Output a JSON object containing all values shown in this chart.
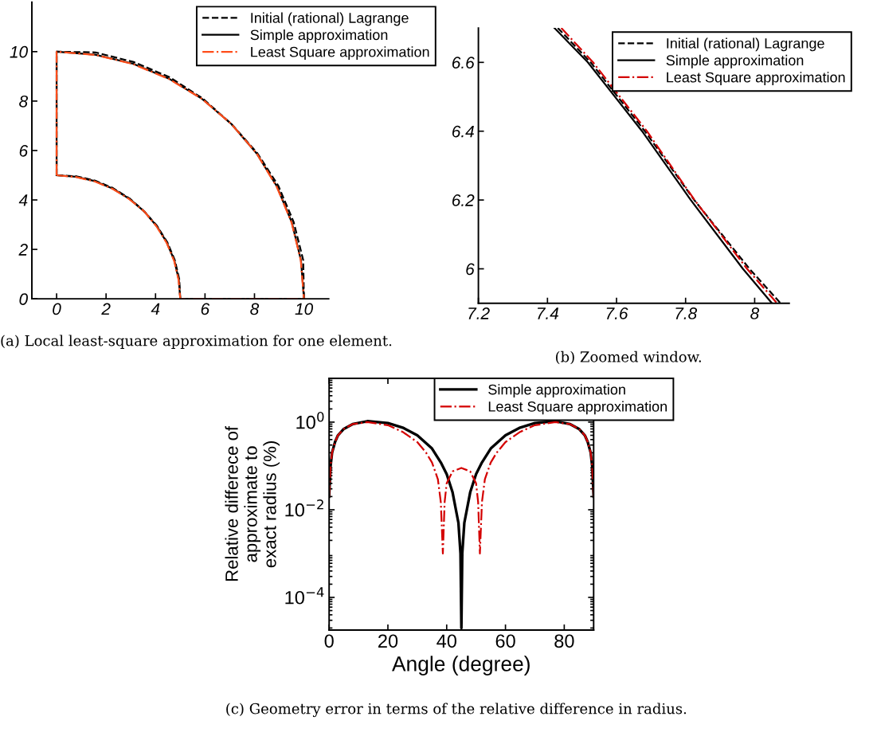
{
  "chart_data": [
    {
      "type": "line",
      "xlim": [
        -1,
        11
      ],
      "ylim": [
        0,
        12
      ],
      "xticks": [
        0,
        2,
        4,
        6,
        8,
        10
      ],
      "yticks": [
        0,
        2,
        4,
        6,
        8,
        10
      ],
      "legend": "top right",
      "annotations": [
        "(a) Local least-square approximation for one element."
      ],
      "series": [
        {
          "name": "Initial (rational) Lagrange",
          "color": "#000000",
          "line_style": "dashed",
          "x": [
            0,
            0,
            1.57,
            3.12,
            4.58,
            5.9,
            7.07,
            8.11,
            8.96,
            9.58,
            9.97,
            10
          ],
          "values": [
            5,
            10,
            9.97,
            9.58,
            8.96,
            8.11,
            7.07,
            5.9,
            4.58,
            3.12,
            1.57,
            0
          ]
        },
        {
          "color": "#000000",
          "line_style": "dashed",
          "x": [
            0,
            0.79,
            1.56,
            2.28,
            2.95,
            3.54,
            4.06,
            4.48,
            4.78,
            4.96,
            5,
            10
          ],
          "values": [
            5,
            4.96,
            4.78,
            4.48,
            4.06,
            3.54,
            2.95,
            2.28,
            1.56,
            0.79,
            0,
            0
          ]
        },
        {
          "name": "Simple approximation",
          "color": "#000000",
          "line_style": "solid",
          "x": [
            0,
            0,
            1.56,
            3.09,
            4.54,
            5.88,
            7.07,
            8.09,
            8.91,
            9.51,
            9.88,
            10
          ],
          "values": [
            5,
            10,
            9.88,
            9.51,
            8.91,
            8.09,
            7.07,
            5.88,
            4.54,
            3.09,
            1.56,
            0
          ]
        },
        {
          "color": "#000000",
          "line_style": "solid",
          "x": [
            0,
            0.78,
            1.55,
            2.27,
            2.94,
            3.54,
            4.05,
            4.46,
            4.76,
            4.94,
            5,
            10
          ],
          "values": [
            5,
            4.94,
            4.76,
            4.46,
            4.05,
            3.54,
            2.94,
            2.27,
            1.55,
            0.78,
            0,
            0
          ]
        },
        {
          "name": "Least Square approximation",
          "color": "#ff4d1a",
          "line_style": "dashdot",
          "x": [
            0,
            0,
            1.56,
            3.08,
            4.53,
            5.88,
            7.07,
            8.09,
            8.9,
            9.5,
            9.87,
            10
          ],
          "values": [
            5,
            10,
            9.87,
            9.5,
            8.9,
            8.09,
            7.07,
            5.88,
            4.53,
            3.08,
            1.56,
            0
          ]
        },
        {
          "color": "#ff4d1a",
          "line_style": "dashdot",
          "x": [
            0,
            0.77,
            1.54,
            2.26,
            2.93,
            3.54,
            4.04,
            4.45,
            4.75,
            4.93,
            5,
            10
          ],
          "values": [
            5,
            4.93,
            4.75,
            4.45,
            4.04,
            3.54,
            2.93,
            2.26,
            1.54,
            0.77,
            0,
            0
          ]
        }
      ]
    },
    {
      "type": "line",
      "xlim": [
        7.2,
        8.1
      ],
      "ylim": [
        5.9,
        6.7
      ],
      "xticks": [
        7.2,
        7.4,
        7.6,
        7.8,
        8
      ],
      "yticks": [
        6,
        6.2,
        6.4,
        6.6
      ],
      "legend": "top right",
      "annotations": [
        "(b) Zoomed window."
      ],
      "series": [
        {
          "name": "Initial (rational) Lagrange",
          "color": "#000000",
          "line_style": "dashed",
          "x": [
            7.43,
            7.525,
            7.682,
            7.825,
            7.985,
            8.075
          ],
          "values": [
            6.7,
            6.6,
            6.4,
            6.2,
            6.0,
            5.9
          ]
        },
        {
          "name": "Simple approximation",
          "color": "#000000",
          "line_style": "solid",
          "x": [
            7.42,
            7.517,
            7.674,
            7.815,
            7.966,
            8.05
          ],
          "values": [
            6.7,
            6.6,
            6.4,
            6.2,
            6.0,
            5.9
          ]
        },
        {
          "name": "Least Square approximation",
          "color": "#d40000",
          "line_style": "dashdot",
          "x": [
            7.44,
            7.532,
            7.688,
            7.826,
            7.978,
            8.065
          ],
          "values": [
            6.7,
            6.6,
            6.4,
            6.2,
            6.0,
            5.9
          ]
        }
      ]
    },
    {
      "type": "line",
      "log": "y",
      "xlim": [
        0,
        90
      ],
      "ylim": [
        1.8e-05,
        10
      ],
      "xticks": [
        0,
        20,
        40,
        60,
        80
      ],
      "yticks": [
        {
          "value": 0.0001,
          "label": "10$^{−4}$"
        },
        {
          "value": 0.01,
          "label": "10$^{−2}$"
        },
        {
          "value": 1,
          "label": "10$^{0}$"
        }
      ],
      "xlabel": "Angle (degree)",
      "ylabel": "Relative differece of\napproximate to\nexact radius (%)",
      "legend": "top",
      "annotations": [
        "(c) Geometry error in terms of the relative difference in radius."
      ],
      "series": [
        {
          "name": "Simple approximation",
          "color": "#000000",
          "line_style": "solid",
          "x": [
            0,
            0.5,
            1,
            2,
            3,
            5,
            8,
            13,
            20,
            25,
            30,
            35,
            38,
            40,
            42,
            44,
            44.7,
            45,
            45.3,
            46,
            48,
            50,
            52,
            55,
            60,
            65,
            70,
            77,
            82,
            85,
            87,
            88,
            89,
            89.5,
            90
          ],
          "values": [
            0.02,
            0.1,
            0.2,
            0.35,
            0.5,
            0.7,
            0.9,
            1.05,
            0.95,
            0.75,
            0.5,
            0.25,
            0.12,
            0.065,
            0.025,
            0.005,
            0.001,
            2e-05,
            0.001,
            0.005,
            0.025,
            0.065,
            0.12,
            0.25,
            0.5,
            0.75,
            0.95,
            1.05,
            0.9,
            0.7,
            0.5,
            0.35,
            0.2,
            0.1,
            0.02
          ]
        },
        {
          "name": "Least Square approximation",
          "color": "#d40000",
          "line_style": "dashdot",
          "x": [
            0,
            0.5,
            1,
            2,
            3,
            5,
            8,
            13,
            20,
            25,
            30,
            33,
            35,
            37,
            38,
            38.7,
            39.3,
            40,
            42,
            45,
            48,
            50,
            50.7,
            51.3,
            52,
            53,
            55,
            57,
            60,
            65,
            70,
            77,
            82,
            85,
            87,
            88,
            89,
            89.5,
            90
          ],
          "values": [
            0.02,
            0.1,
            0.2,
            0.35,
            0.5,
            0.7,
            0.9,
            1.0,
            0.85,
            0.6,
            0.35,
            0.2,
            0.12,
            0.05,
            0.015,
            0.001,
            0.015,
            0.04,
            0.075,
            0.09,
            0.075,
            0.04,
            0.015,
            0.001,
            0.015,
            0.05,
            0.12,
            0.2,
            0.35,
            0.6,
            0.85,
            1.0,
            0.9,
            0.7,
            0.5,
            0.35,
            0.2,
            0.1,
            0.02
          ]
        }
      ]
    }
  ]
}
